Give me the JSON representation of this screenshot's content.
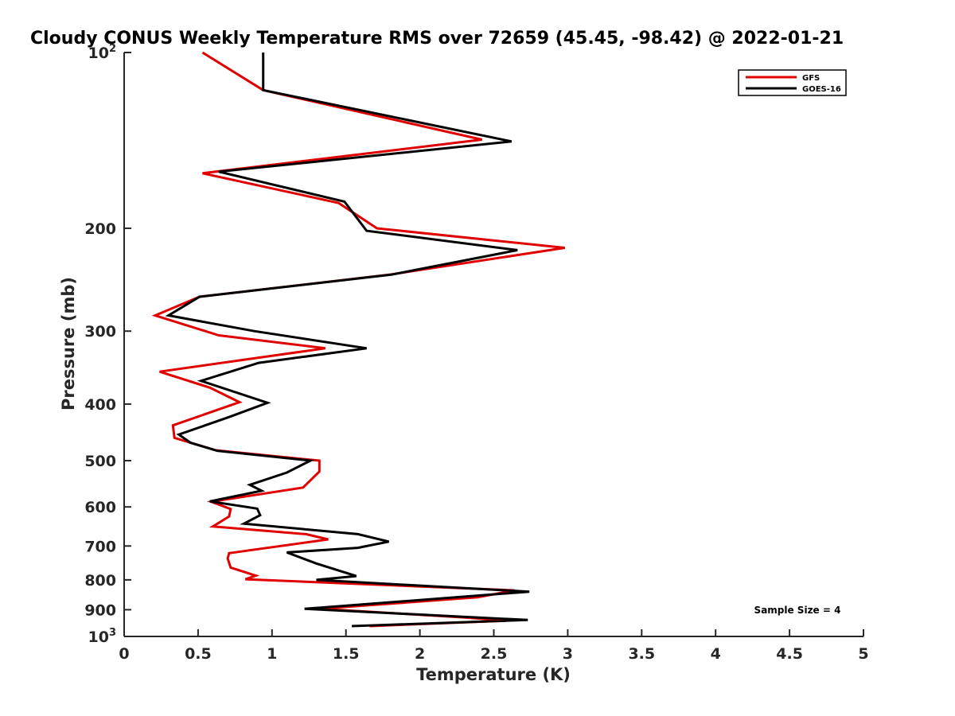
{
  "chart_data": {
    "type": "line",
    "title": "Cloudy CONUS Weekly Temperature RMS over 72659 (45.45, -98.42) @ 2022-01-21",
    "xlabel": "Temperature (K)",
    "ylabel": "Pressure (mb)",
    "xlim": [
      0,
      5
    ],
    "ylim": [
      100,
      1000
    ],
    "y_scale": "log",
    "y_reversed": true,
    "x_ticks": [
      0,
      0.5,
      1,
      1.5,
      2,
      2.5,
      3,
      3.5,
      4,
      4.5,
      5
    ],
    "x_tick_labels": [
      "0",
      "0.5",
      "1",
      "1.5",
      "2",
      "2.5",
      "3",
      "3.5",
      "4",
      "4.5",
      "5"
    ],
    "y_ticks": [
      100,
      200,
      300,
      400,
      500,
      600,
      700,
      800,
      900,
      1000
    ],
    "y_tick_labels": [
      {
        "base": "10",
        "exp": "2"
      },
      {
        "base": "200",
        "exp": ""
      },
      {
        "base": "300",
        "exp": ""
      },
      {
        "base": "400",
        "exp": ""
      },
      {
        "base": "500",
        "exp": ""
      },
      {
        "base": "600",
        "exp": ""
      },
      {
        "base": "700",
        "exp": ""
      },
      {
        "base": "800",
        "exp": ""
      },
      {
        "base": "900",
        "exp": ""
      },
      {
        "base": "10",
        "exp": "3"
      }
    ],
    "grid": false,
    "legend_position": "top-right",
    "annotation": "Sample Size = 4",
    "series": [
      {
        "name": "GFS",
        "color": "#e00000",
        "points": [
          [
            0.53,
            100
          ],
          [
            0.94,
            116
          ],
          [
            2.42,
            141
          ],
          [
            0.53,
            161
          ],
          [
            1.45,
            181
          ],
          [
            1.71,
            200
          ],
          [
            2.98,
            216
          ],
          [
            1.8,
            240
          ],
          [
            0.51,
            262
          ],
          [
            0.21,
            282
          ],
          [
            0.64,
            305
          ],
          [
            1.36,
            321
          ],
          [
            0.24,
            352
          ],
          [
            0.58,
            375
          ],
          [
            0.78,
            397
          ],
          [
            0.33,
            435
          ],
          [
            0.34,
            457
          ],
          [
            0.62,
            480
          ],
          [
            1.32,
            500
          ],
          [
            1.32,
            522
          ],
          [
            1.21,
            556
          ],
          [
            0.59,
            588
          ],
          [
            0.72,
            605
          ],
          [
            0.71,
            623
          ],
          [
            0.6,
            648
          ],
          [
            1.23,
            668
          ],
          [
            1.38,
            682
          ],
          [
            0.71,
            720
          ],
          [
            0.7,
            735
          ],
          [
            0.72,
            762
          ],
          [
            0.89,
            787
          ],
          [
            0.82,
            798
          ],
          [
            2.64,
            834
          ],
          [
            2.39,
            857
          ],
          [
            1.32,
            897
          ],
          [
            2.31,
            928
          ],
          [
            2.58,
            940
          ],
          [
            1.66,
            960
          ]
        ]
      },
      {
        "name": "GOES-16",
        "color": "#000000",
        "points": [
          [
            0.94,
            100
          ],
          [
            0.94,
            116
          ],
          [
            2.62,
            142
          ],
          [
            0.64,
            160
          ],
          [
            1.49,
            180
          ],
          [
            1.64,
            202
          ],
          [
            2.66,
            218
          ],
          [
            1.81,
            240
          ],
          [
            0.51,
            262
          ],
          [
            0.3,
            282
          ],
          [
            0.88,
            300
          ],
          [
            1.64,
            321
          ],
          [
            0.91,
            340
          ],
          [
            0.52,
            365
          ],
          [
            0.97,
            398
          ],
          [
            0.71,
            421
          ],
          [
            0.37,
            451
          ],
          [
            0.45,
            466
          ],
          [
            0.63,
            481
          ],
          [
            1.26,
            500
          ],
          [
            1.1,
            524
          ],
          [
            0.85,
            550
          ],
          [
            0.93,
            563
          ],
          [
            0.58,
            587
          ],
          [
            0.9,
            604
          ],
          [
            0.92,
            620
          ],
          [
            0.81,
            641
          ],
          [
            1.58,
            668
          ],
          [
            1.79,
            688
          ],
          [
            1.58,
            705
          ],
          [
            1.1,
            718
          ],
          [
            1.3,
            750
          ],
          [
            1.57,
            788
          ],
          [
            1.3,
            800
          ],
          [
            2.74,
            838
          ],
          [
            1.22,
            897
          ],
          [
            2.73,
            937
          ],
          [
            1.54,
            960
          ]
        ]
      }
    ]
  }
}
